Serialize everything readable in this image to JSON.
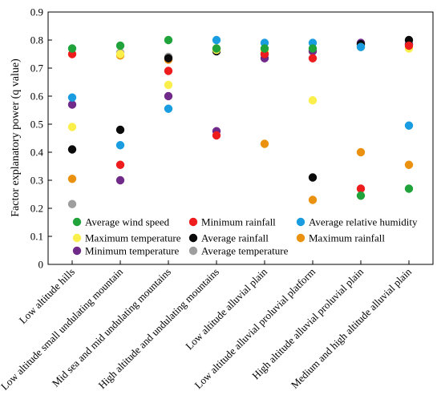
{
  "chart_data": {
    "type": "scatter",
    "ylabel": "Factor explanatory power (q value)",
    "xlabel": "",
    "ylim": [
      0,
      0.9
    ],
    "yticks": [
      "0",
      "0.1",
      "0.2",
      "0.3",
      "0.4",
      "0.5",
      "0.6",
      "0.7",
      "0.8",
      "0.9"
    ],
    "grid": false,
    "legend_position": "bottom-inside",
    "categories": [
      "Low altitude hills",
      "Low altitude small undulating mountain",
      "Mid sea and mid undulating mountains",
      "High altitude and undulating mountains",
      "Low altitude alluvial plain",
      "Low altitude alluvial proluvial platform",
      "High altitude alluvial proluvial plain",
      "Medium and high altitude alluvial plain"
    ],
    "series": [
      {
        "name": "Average wind speed",
        "color": "#1fa33a",
        "values": [
          0.77,
          0.78,
          0.8,
          0.77,
          0.77,
          0.77,
          0.245,
          0.27
        ]
      },
      {
        "name": "Minimum rainfall",
        "color": "#ee1c1c",
        "values": [
          0.75,
          0.355,
          0.69,
          0.46,
          0.75,
          0.735,
          0.27,
          0.78
        ]
      },
      {
        "name": "Average relative humidity",
        "color": "#1a9de0",
        "values": [
          0.595,
          0.425,
          0.555,
          0.8,
          0.79,
          0.79,
          0.775,
          0.495
        ]
      },
      {
        "name": "Maximum temperature",
        "color": "#fbef4c",
        "values": [
          0.49,
          0.75,
          0.64,
          0.765,
          0.76,
          0.585,
          0.775,
          0.77
        ]
      },
      {
        "name": "Average rainfall",
        "color": "#0a0a0a",
        "values": [
          0.41,
          0.48,
          0.735,
          0.76,
          0.75,
          0.31,
          0.785,
          0.8
        ]
      },
      {
        "name": "Maximum rainfall",
        "color": "#ea920f",
        "values": [
          0.305,
          0.745,
          0.73,
          0.77,
          0.43,
          0.23,
          0.4,
          0.355
        ]
      },
      {
        "name": "Minimum temperature",
        "color": "#6f2a8a",
        "values": [
          0.57,
          0.3,
          0.6,
          0.475,
          0.735,
          0.76,
          0.79,
          0.785
        ]
      },
      {
        "name": "Average temperature",
        "color": "#9e9e9e",
        "values": [
          0.215,
          0.755,
          0.74,
          0.765,
          0.76,
          0.765,
          0.785,
          0.785
        ]
      }
    ]
  }
}
